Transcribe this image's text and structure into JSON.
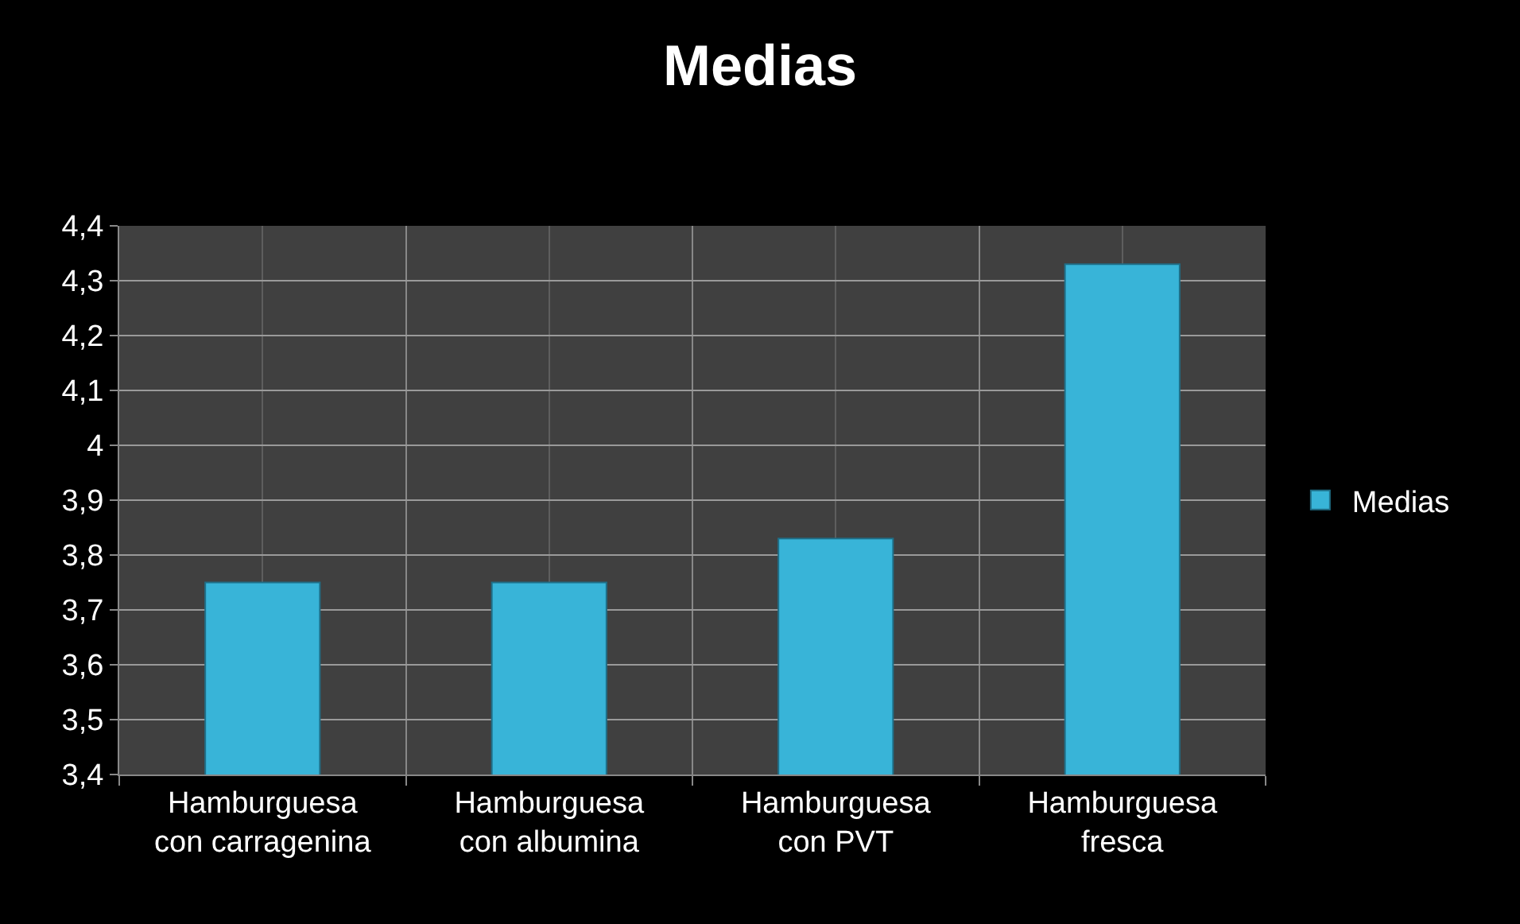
{
  "chart_data": {
    "type": "bar",
    "title": "Medias",
    "categories": [
      "Hamburguesa\ncon carragenina",
      "Hamburguesa\ncon albumina",
      "Hamburguesa\ncon PVT",
      "Hamburguesa\nfresca"
    ],
    "series": [
      {
        "name": "Medias",
        "color": "#38b4d8",
        "values": [
          3.75,
          3.75,
          3.83,
          4.33
        ]
      }
    ],
    "ylim": [
      3.4,
      4.4
    ],
    "yticks": [
      {
        "value": 3.4,
        "label": "3,4"
      },
      {
        "value": 3.5,
        "label": "3,5"
      },
      {
        "value": 3.6,
        "label": "3,6"
      },
      {
        "value": 3.7,
        "label": "3,7"
      },
      {
        "value": 3.8,
        "label": "3,8"
      },
      {
        "value": 3.9,
        "label": "3,9"
      },
      4,
      {
        "value": 4.1,
        "label": "4,1"
      },
      {
        "value": 4.2,
        "label": "4,2"
      },
      {
        "value": 4.3,
        "label": "4,3"
      },
      {
        "value": 4.4,
        "label": "4,4"
      }
    ],
    "grid": true,
    "legend": "right"
  }
}
